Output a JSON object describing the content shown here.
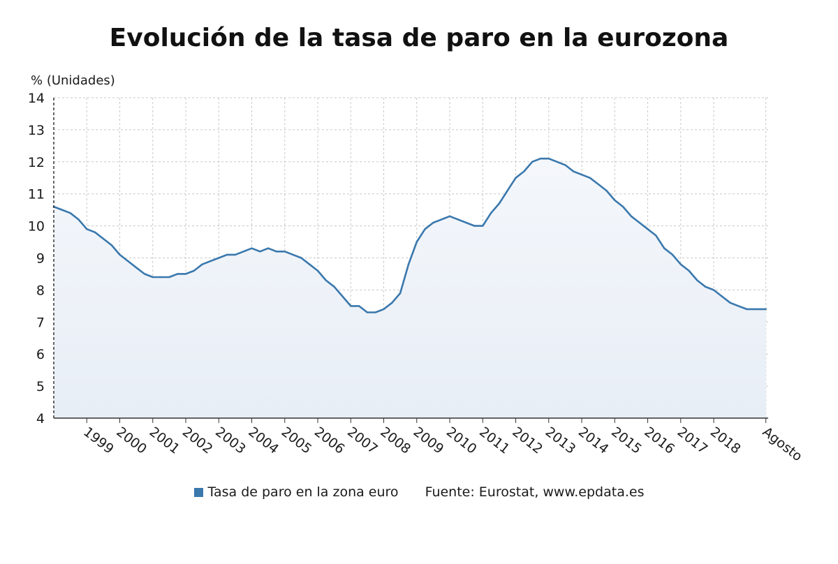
{
  "title": "Evolución de la tasa de paro en la eurozona",
  "legend": {
    "series_label": "Tasa de paro en la zona euro",
    "source": "Fuente: Eurostat, www.epdata.es",
    "series_color": "#3a78ad"
  },
  "colors": {
    "line": "#3a78ad",
    "fill_top": "#f4f7fb",
    "fill_bottom": "#e8eef6",
    "grid": "#c8c8c8",
    "axis": "#333333",
    "text": "#1a1a1a"
  },
  "chart_data": {
    "type": "area",
    "title": "Evolución de la tasa de paro en la eurozona",
    "ylabel": "% (Unidades)",
    "xlabel": "",
    "ylim": [
      4,
      14
    ],
    "yticks": [
      4,
      5,
      6,
      7,
      8,
      9,
      10,
      11,
      12,
      13,
      14
    ],
    "xlim": [
      1998.0,
      2019.65
    ],
    "x_tick_labels": [
      "1999",
      "2000",
      "2001",
      "2002",
      "2003",
      "2004",
      "2005",
      "2006",
      "2007",
      "2008",
      "2009",
      "2010",
      "2011",
      "2012",
      "2013",
      "2014",
      "2015",
      "2016",
      "2017",
      "2018",
      "Agosto"
    ],
    "x_tick_positions": [
      1999,
      2000,
      2001,
      2002,
      2003,
      2004,
      2005,
      2006,
      2007,
      2008,
      2009,
      2010,
      2011,
      2012,
      2013,
      2014,
      2015,
      2016,
      2017,
      2018,
      2019.58
    ],
    "grid": true,
    "legend_position": "bottom",
    "series": [
      {
        "name": "Tasa de paro en la zona euro",
        "x": [
          1998.0,
          1998.25,
          1998.5,
          1998.75,
          1999.0,
          1999.25,
          1999.5,
          1999.75,
          2000.0,
          2000.25,
          2000.5,
          2000.75,
          2001.0,
          2001.25,
          2001.5,
          2001.75,
          2002.0,
          2002.25,
          2002.5,
          2002.75,
          2003.0,
          2003.25,
          2003.5,
          2003.75,
          2004.0,
          2004.25,
          2004.5,
          2004.75,
          2005.0,
          2005.25,
          2005.5,
          2005.75,
          2006.0,
          2006.25,
          2006.5,
          2006.75,
          2007.0,
          2007.25,
          2007.5,
          2007.75,
          2008.0,
          2008.25,
          2008.5,
          2008.75,
          2009.0,
          2009.25,
          2009.5,
          2009.75,
          2010.0,
          2010.25,
          2010.5,
          2010.75,
          2011.0,
          2011.25,
          2011.5,
          2011.75,
          2012.0,
          2012.25,
          2012.5,
          2012.75,
          2013.0,
          2013.25,
          2013.5,
          2013.75,
          2014.0,
          2014.25,
          2014.5,
          2014.75,
          2015.0,
          2015.25,
          2015.5,
          2015.75,
          2016.0,
          2016.25,
          2016.5,
          2016.75,
          2017.0,
          2017.25,
          2017.5,
          2017.75,
          2018.0,
          2018.25,
          2018.5,
          2018.75,
          2019.0,
          2019.25,
          2019.58
        ],
        "values": [
          10.6,
          10.5,
          10.4,
          10.2,
          9.9,
          9.8,
          9.6,
          9.4,
          9.1,
          8.9,
          8.7,
          8.5,
          8.4,
          8.4,
          8.4,
          8.5,
          8.5,
          8.6,
          8.8,
          8.9,
          9.0,
          9.1,
          9.1,
          9.2,
          9.3,
          9.2,
          9.3,
          9.2,
          9.2,
          9.1,
          9.0,
          8.8,
          8.6,
          8.3,
          8.1,
          7.8,
          7.5,
          7.5,
          7.3,
          7.3,
          7.4,
          7.6,
          7.9,
          8.8,
          9.5,
          9.9,
          10.1,
          10.2,
          10.3,
          10.2,
          10.1,
          10.0,
          10.0,
          10.4,
          10.7,
          11.1,
          11.5,
          11.7,
          12.0,
          12.1,
          12.1,
          12.0,
          11.9,
          11.7,
          11.6,
          11.5,
          11.3,
          11.1,
          10.8,
          10.6,
          10.3,
          10.1,
          9.9,
          9.7,
          9.3,
          9.1,
          8.8,
          8.6,
          8.3,
          8.1,
          8.0,
          7.8,
          7.6,
          7.5,
          7.4,
          7.4,
          7.4
        ]
      }
    ]
  }
}
